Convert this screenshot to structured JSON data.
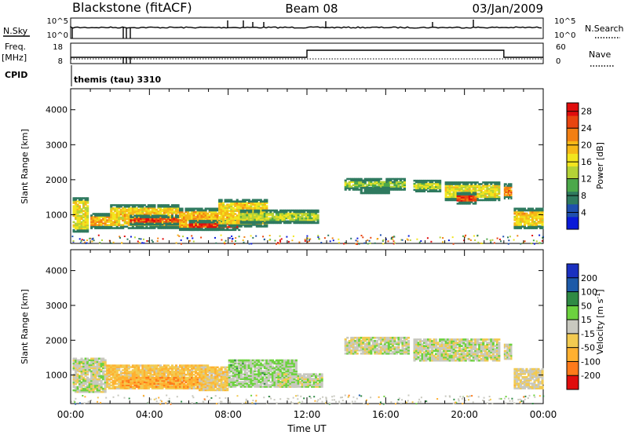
{
  "header": {
    "station": "Blackstone (fitACF)",
    "beam": "Beam 08",
    "date": "03/Jan/2009"
  },
  "strips": {
    "nsky_label": "N.Sky",
    "nsearch_label": "N.Search",
    "nsky_ticks": [
      "10^5",
      "10^0"
    ],
    "nsearch_ticks": [
      "10^5",
      "10^0"
    ],
    "freq_label": "Freq.",
    "freq_unit": "[MHz]",
    "freq_ticks": [
      "18",
      "8"
    ],
    "nave_label": "Nave",
    "nave_ticks": [
      "60",
      "0"
    ],
    "cpid_label": "CPID",
    "cpid_value": "themis (tau) 3310"
  },
  "colors": {
    "power": [
      "#0a1ad8",
      "#1f4fae",
      "#2f7a5f",
      "#4ca84a",
      "#b4d236",
      "#f2e51e",
      "#f6b817",
      "#f27f13",
      "#e8450f",
      "#e00d0d"
    ],
    "velocity": [
      "#e00d0d",
      "#ff7a1a",
      "#ffb030",
      "#f2ca50",
      "#c8c8bf",
      "#6cd23e",
      "#2f8a44",
      "#1d5aa8",
      "#1a30c0"
    ],
    "ground_scatter": "#c8c8bf"
  },
  "chart_data": [
    {
      "type": "heatmap",
      "name": "power",
      "ylabel": "Slant Range [km]",
      "xlabel": "",
      "ylim": [
        180,
        4600
      ],
      "yticks": [
        "1000",
        "2000",
        "3000",
        "4000"
      ],
      "xlim_hours": [
        0,
        24
      ],
      "colorbar": {
        "label": "Power [dB]",
        "ticks": [
          "4",
          "8",
          "12",
          "16",
          "20",
          "24",
          "28"
        ],
        "range": [
          0,
          30
        ]
      },
      "patches": [
        {
          "t0": 0.1,
          "t1": 0.9,
          "r0": 500,
          "r1": 1500,
          "v": 16
        },
        {
          "t0": 1.0,
          "t1": 2.0,
          "r0": 600,
          "r1": 1050,
          "v": 20
        },
        {
          "t0": 2.0,
          "t1": 5.5,
          "r0": 600,
          "r1": 1300,
          "v": 18
        },
        {
          "t0": 3.0,
          "t1": 5.5,
          "r0": 700,
          "r1": 1000,
          "v": 26
        },
        {
          "t0": 5.5,
          "t1": 7.5,
          "r0": 550,
          "r1": 1200,
          "v": 20
        },
        {
          "t0": 6.0,
          "t1": 8.6,
          "r0": 550,
          "r1": 850,
          "v": 28
        },
        {
          "t0": 7.5,
          "t1": 10.0,
          "r0": 650,
          "r1": 1450,
          "v": 18
        },
        {
          "t0": 8.6,
          "t1": 12.6,
          "r0": 750,
          "r1": 1150,
          "v": 14
        },
        {
          "t0": 13.9,
          "t1": 17.0,
          "r0": 1700,
          "r1": 2050,
          "v": 12
        },
        {
          "t0": 14.7,
          "t1": 16.2,
          "r0": 1600,
          "r1": 1800,
          "v": 22
        },
        {
          "t0": 17.4,
          "t1": 18.8,
          "r0": 1650,
          "r1": 2000,
          "v": 14
        },
        {
          "t0": 19.0,
          "t1": 21.8,
          "r0": 1400,
          "r1": 1950,
          "v": 16
        },
        {
          "t0": 19.6,
          "t1": 20.6,
          "r0": 1300,
          "r1": 1650,
          "v": 26
        },
        {
          "t0": 22.0,
          "t1": 22.4,
          "r0": 1450,
          "r1": 1900,
          "v": 22
        },
        {
          "t0": 22.5,
          "t1": 24.0,
          "r0": 600,
          "r1": 1200,
          "v": 18
        }
      ]
    },
    {
      "type": "heatmap",
      "name": "velocity",
      "ylabel": "Slant Range [km]",
      "xlabel": "Time UT",
      "ylim": [
        180,
        4600
      ],
      "yticks": [
        "1000",
        "2000",
        "3000",
        "4000"
      ],
      "xlim_hours": [
        0,
        24
      ],
      "xticks": [
        "00:00",
        "04:00",
        "08:00",
        "12:00",
        "16:00",
        "20:00",
        "00:00"
      ],
      "colorbar": {
        "label": "Velocity [m s",
        "label_sup": "-1",
        "label_end": "]",
        "ticks": [
          "-200",
          "-100",
          "-50",
          "-15",
          "15",
          "50",
          "100",
          "200"
        ],
        "range": [
          -250,
          250
        ]
      },
      "patches": [
        {
          "t0": 0.1,
          "t1": 1.8,
          "r0": 500,
          "r1": 1500,
          "v": 0
        },
        {
          "t0": 1.8,
          "t1": 7.0,
          "r0": 600,
          "r1": 1300,
          "v": -70
        },
        {
          "t0": 2.5,
          "t1": 7.0,
          "r0": 650,
          "r1": 950,
          "v": -110
        },
        {
          "t0": 6.5,
          "t1": 8.0,
          "r0": 550,
          "r1": 1250,
          "v": -55
        },
        {
          "t0": 8.0,
          "t1": 11.5,
          "r0": 650,
          "r1": 1450,
          "v": 30
        },
        {
          "t0": 10.5,
          "t1": 12.8,
          "r0": 650,
          "r1": 1050,
          "v": 5
        },
        {
          "t0": 13.9,
          "t1": 17.2,
          "r0": 1600,
          "r1": 2100,
          "v": 0
        },
        {
          "t0": 17.4,
          "t1": 21.8,
          "r0": 1400,
          "r1": 2050,
          "v": 0
        },
        {
          "t0": 22.0,
          "t1": 22.4,
          "r0": 1450,
          "r1": 1900,
          "v": 0
        },
        {
          "t0": 22.5,
          "t1": 24.0,
          "r0": 600,
          "r1": 1200,
          "v": -30
        }
      ]
    }
  ]
}
